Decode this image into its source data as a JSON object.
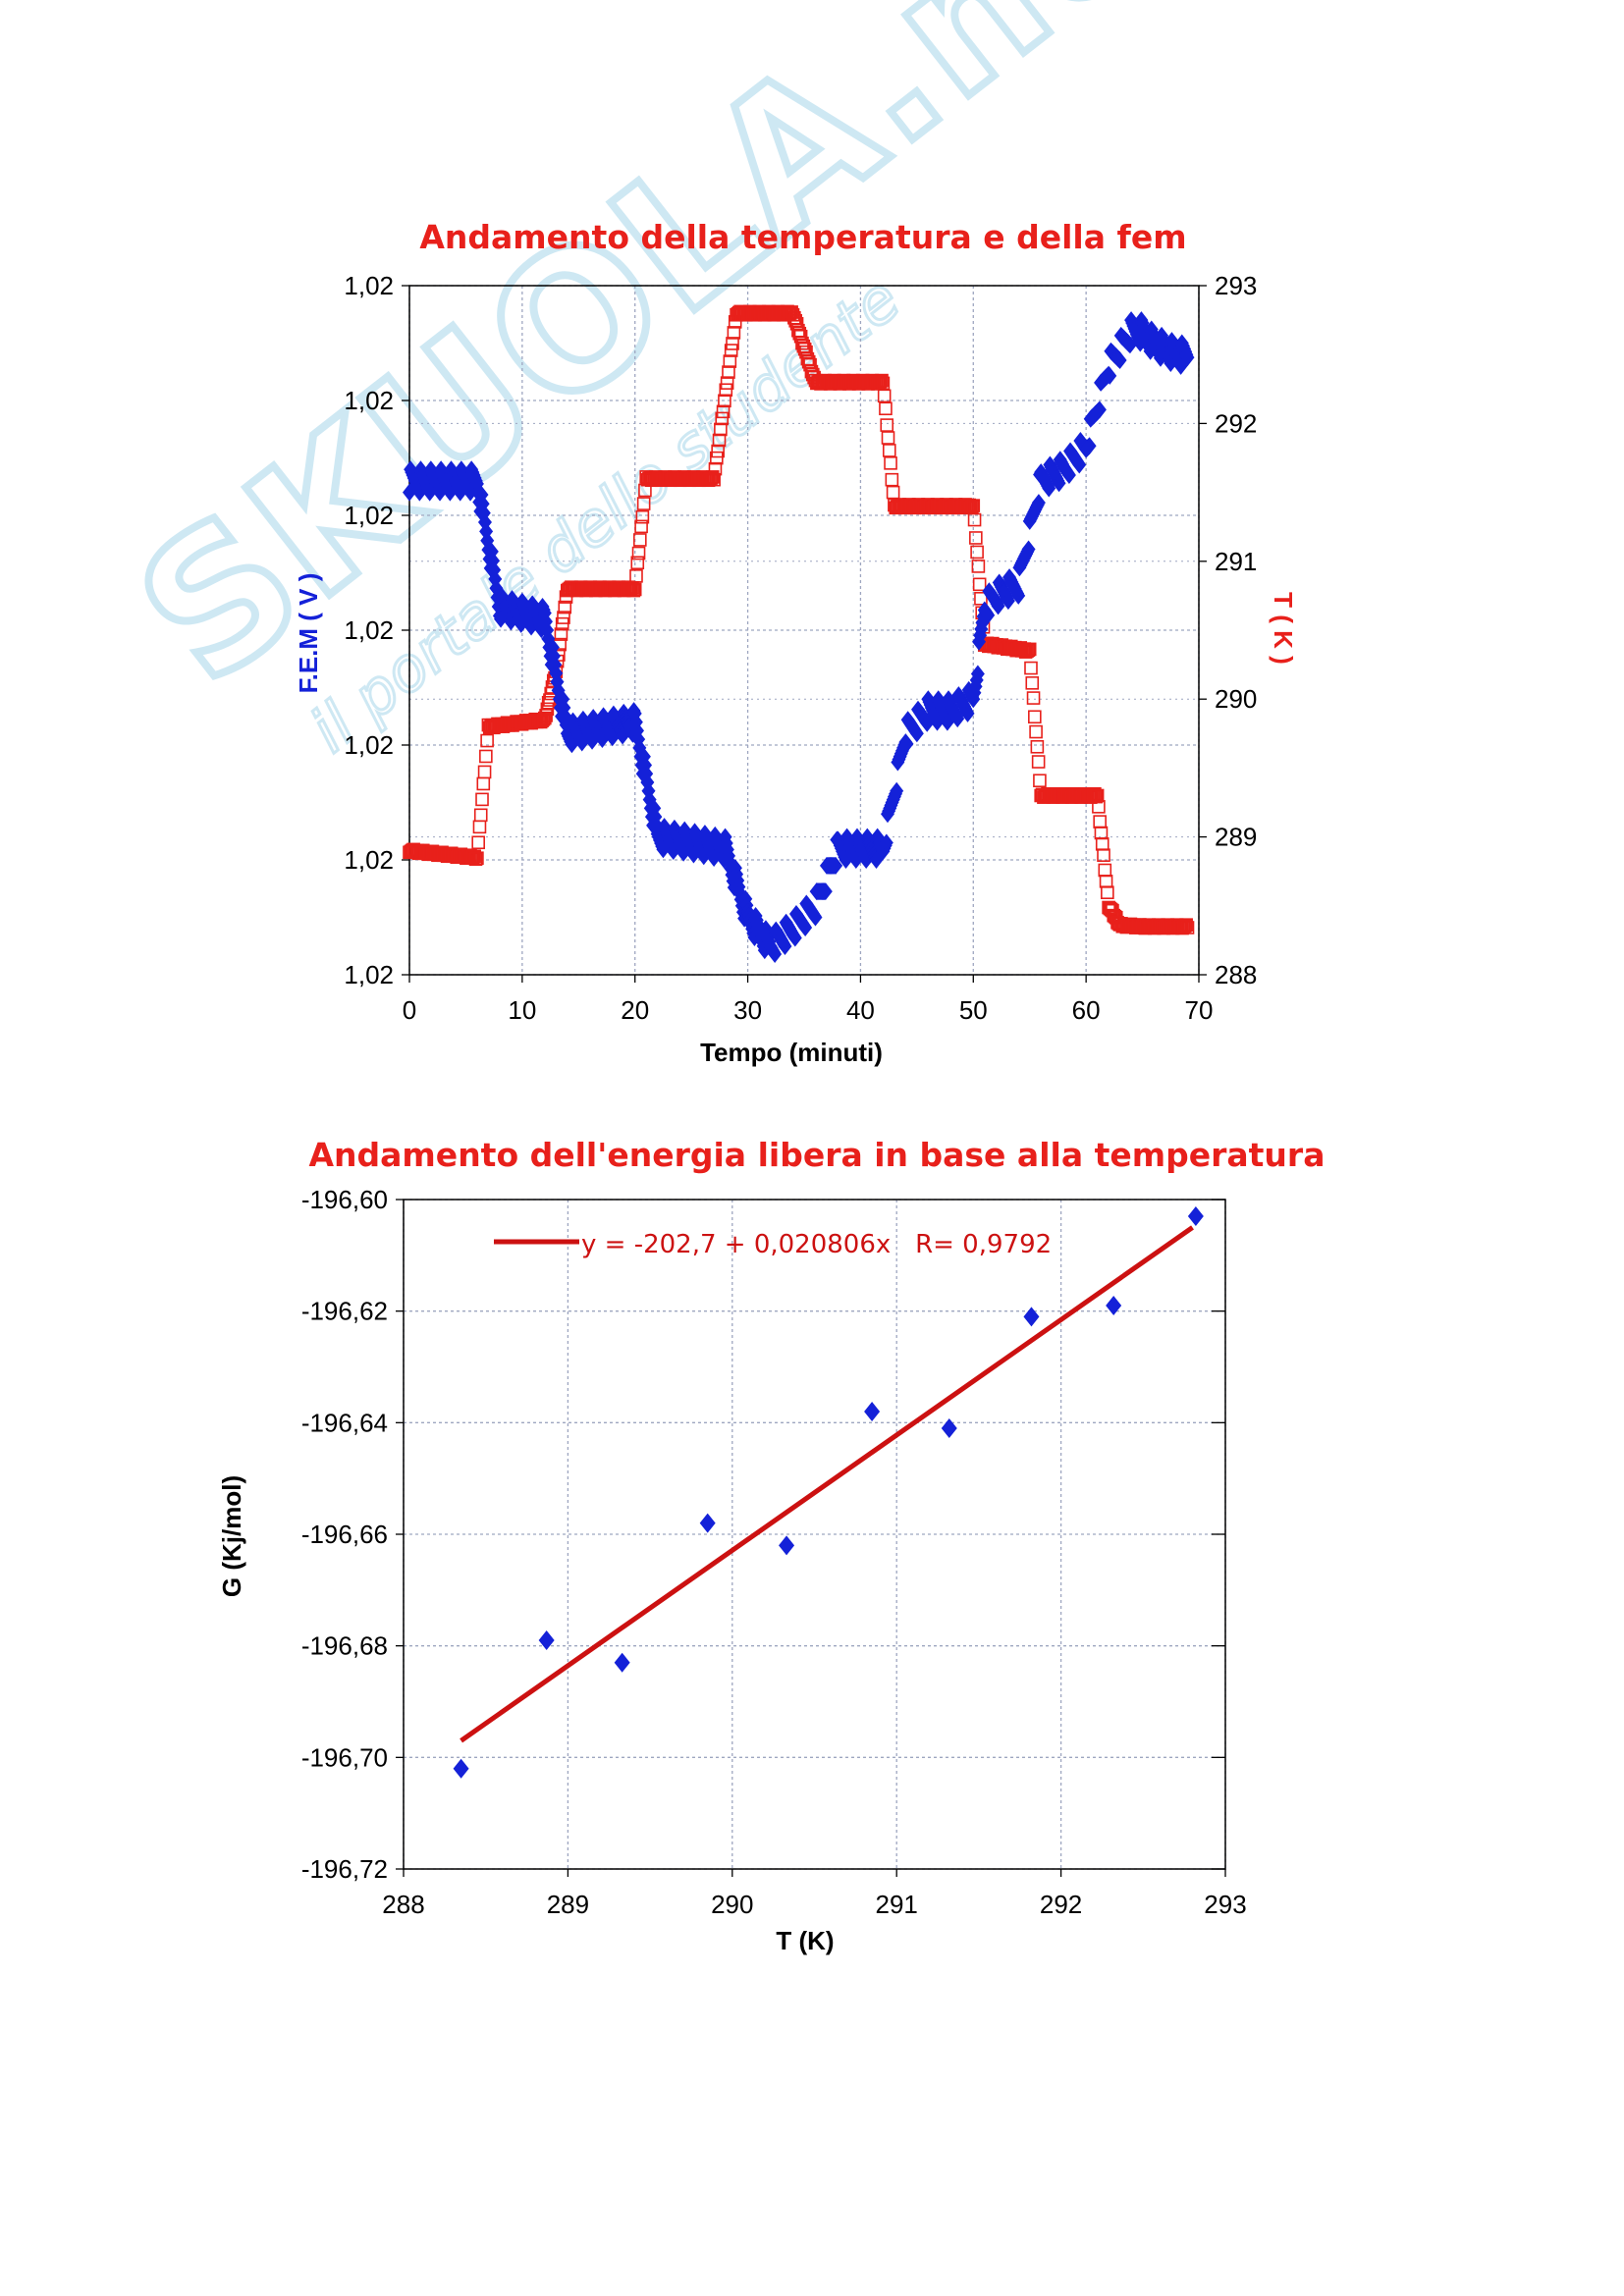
{
  "watermark": {
    "brand": "SKUOLA.net",
    "tagline": "il portale dello studente"
  },
  "colors": {
    "red": "#e8201b",
    "blue": "#1421d8",
    "fit": "#cc1111",
    "grid": "#9ea6c0",
    "watermark": "#c9e6f2"
  },
  "chart_data": [
    {
      "type": "scatter",
      "title": "Andamento della temperatura e della fem",
      "xlabel": "Tempo (minuti)",
      "ylabel_left": "F.E.M ( V )",
      "ylabel_right": "T ( K )",
      "xlim": [
        0,
        70
      ],
      "xticks": [
        "0",
        "10",
        "20",
        "30",
        "40",
        "50",
        "60",
        "70"
      ],
      "ylim_left_steps": [
        0,
        6
      ],
      "yticks_left": [
        "1,02",
        "1,02",
        "1,02",
        "1,02",
        "1,02",
        "1,02",
        "1,02"
      ],
      "ylim_right": [
        288,
        293
      ],
      "yticks_right": [
        "288",
        "289",
        "290",
        "291",
        "292",
        "293"
      ],
      "grid": true,
      "series": [
        {
          "axis": "left",
          "marker": "diamond",
          "color": "#1421d8",
          "x": [
            0,
            6,
            8,
            12,
            14,
            20,
            22,
            28,
            30,
            32,
            34,
            36,
            38,
            42,
            44,
            46,
            48,
            50,
            51,
            52,
            54,
            56,
            58,
            60,
            62,
            64,
            65,
            66,
            68,
            69
          ],
          "y": [
            4.3,
            4.3,
            3.2,
            3.1,
            2.1,
            2.2,
            1.2,
            1.1,
            0.5,
            0.25,
            0.4,
            0.6,
            1.1,
            1.1,
            2.1,
            2.3,
            2.3,
            2.4,
            3.2,
            3.3,
            3.4,
            4.3,
            4.4,
            4.6,
            5.3,
            5.6,
            5.6,
            5.5,
            5.4,
            5.4
          ]
        },
        {
          "axis": "right",
          "marker": "square",
          "color": "#e8201b",
          "x": [
            0,
            6,
            7,
            12,
            13,
            14,
            20,
            21,
            27,
            29,
            34,
            36,
            42,
            43,
            50,
            51,
            55,
            56,
            61,
            62,
            63,
            65,
            69
          ],
          "y": [
            288.9,
            288.85,
            289.8,
            289.85,
            290.2,
            290.8,
            290.8,
            291.6,
            291.6,
            292.8,
            292.8,
            292.3,
            292.3,
            291.4,
            291.4,
            290.4,
            290.35,
            289.3,
            289.3,
            288.5,
            288.36,
            288.35,
            288.35
          ]
        }
      ]
    },
    {
      "type": "scatter",
      "title": "Andamento dell'energia libera in base alla temperatura",
      "xlabel": "T (K)",
      "ylabel": "G (Kj/mol)",
      "xlim": [
        288,
        293
      ],
      "xticks": [
        "288",
        "289",
        "290",
        "291",
        "292",
        "293"
      ],
      "ylim": [
        -196.72,
        -196.6
      ],
      "yticks": [
        "-196,60",
        "-196,62",
        "-196,64",
        "-196,66",
        "-196,68",
        "-196,70",
        "-196,72"
      ],
      "grid": true,
      "legend_position": "top",
      "fit_label": "y = -202,7 + 0,020806x   R= 0,9792",
      "fit": {
        "intercept": -202.7,
        "slope": 0.020806,
        "x_range": [
          288.35,
          292.8
        ],
        "y_range": [
          -196.697,
          -196.605
        ]
      },
      "points": {
        "marker": "diamond",
        "color": "#1421d8",
        "x": [
          288.35,
          288.87,
          289.33,
          289.85,
          290.33,
          290.85,
          291.32,
          291.82,
          292.32,
          292.82
        ],
        "y": [
          -196.702,
          -196.679,
          -196.683,
          -196.658,
          -196.662,
          -196.638,
          -196.641,
          -196.621,
          -196.619,
          -196.603
        ]
      }
    }
  ]
}
